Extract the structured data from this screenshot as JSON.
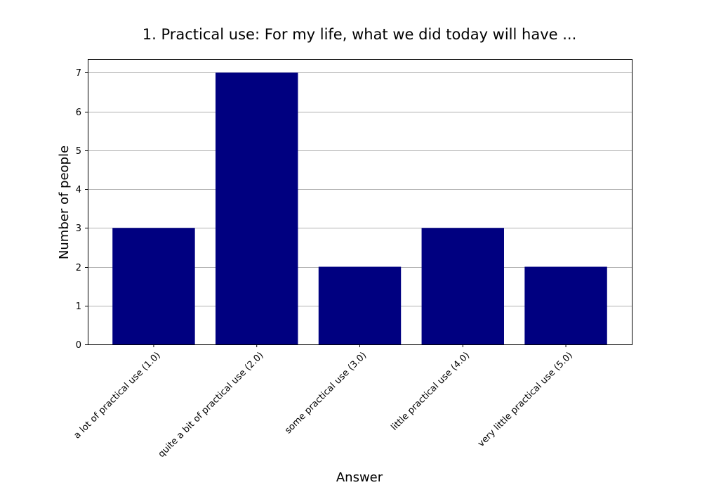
{
  "chart_data": {
    "type": "bar",
    "title": "1. Practical use: For my life, what we did today will have ...",
    "xlabel": "Answer",
    "ylabel": "Number of people",
    "categories": [
      "a lot of practical use (1.0)",
      "quite a bit of practical use (2.0)",
      "some practical use (3.0)",
      "little practical use (4.0)",
      "very little practical use (5.0)"
    ],
    "values": [
      3,
      7,
      2,
      3,
      2
    ],
    "yticks": [
      0,
      1,
      2,
      3,
      4,
      5,
      6,
      7
    ],
    "ylim": [
      0,
      7.35
    ],
    "grid": "horizontal",
    "bar_color": "#000080"
  }
}
